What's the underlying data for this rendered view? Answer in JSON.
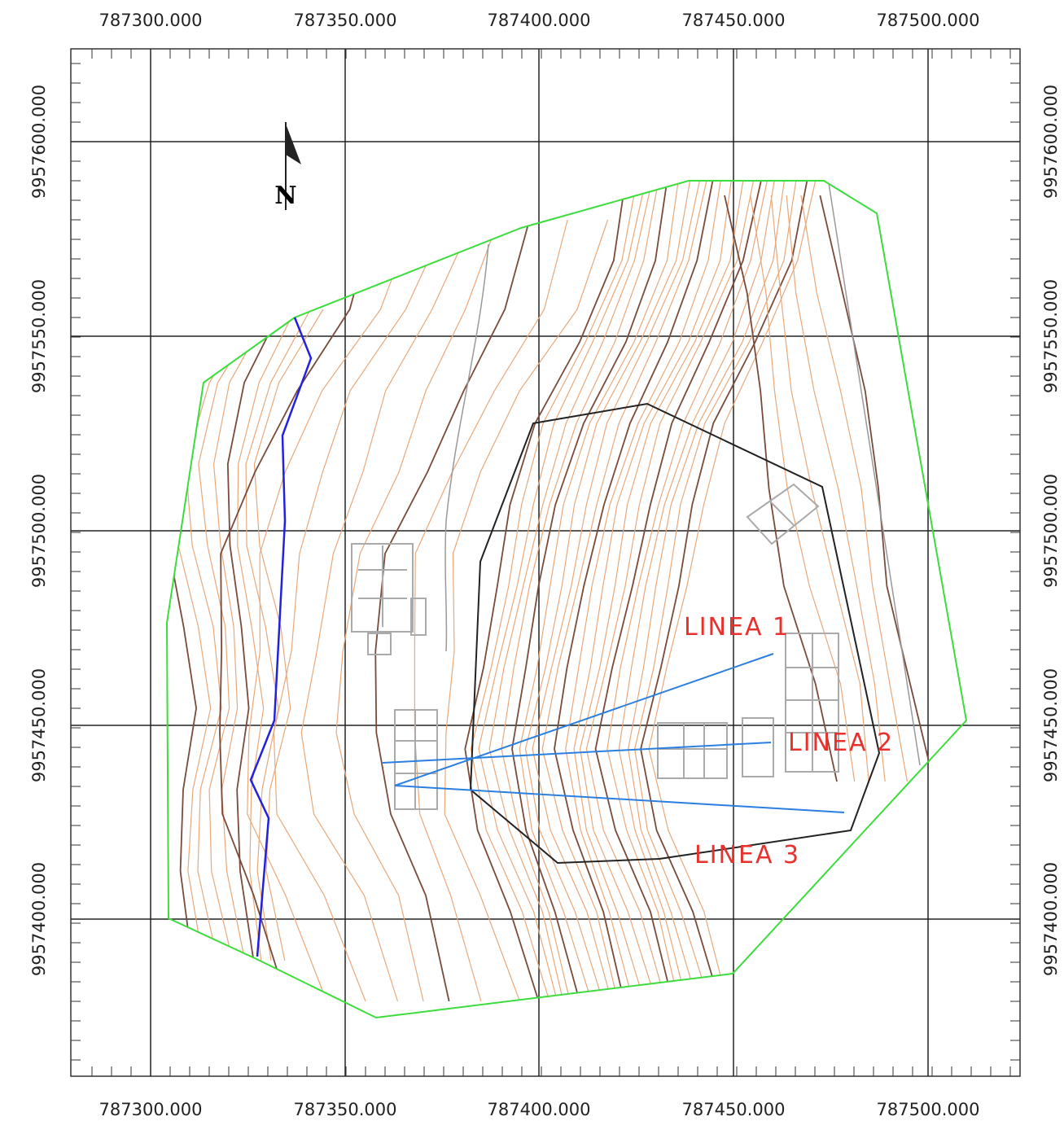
{
  "x_labels_top": [
    "787300.000",
    "787350.000",
    "787400.000",
    "787450.000",
    "787500.000"
  ],
  "x_labels_bottom": [
    "787300.000",
    "787350.000",
    "787400.000",
    "787450.000",
    "787500.000"
  ],
  "y_labels_left": [
    "9957600.000",
    "9957550.000",
    "9957500.000",
    "9957450.000",
    "9957400.000"
  ],
  "y_labels_right": [
    "9957600.000",
    "9957550.000",
    "9957500.000",
    "9957450.000",
    "9957400.000"
  ],
  "north": "N",
  "lines": [
    "LINEA 1",
    "LINEA 2",
    "LINEA 3"
  ]
}
